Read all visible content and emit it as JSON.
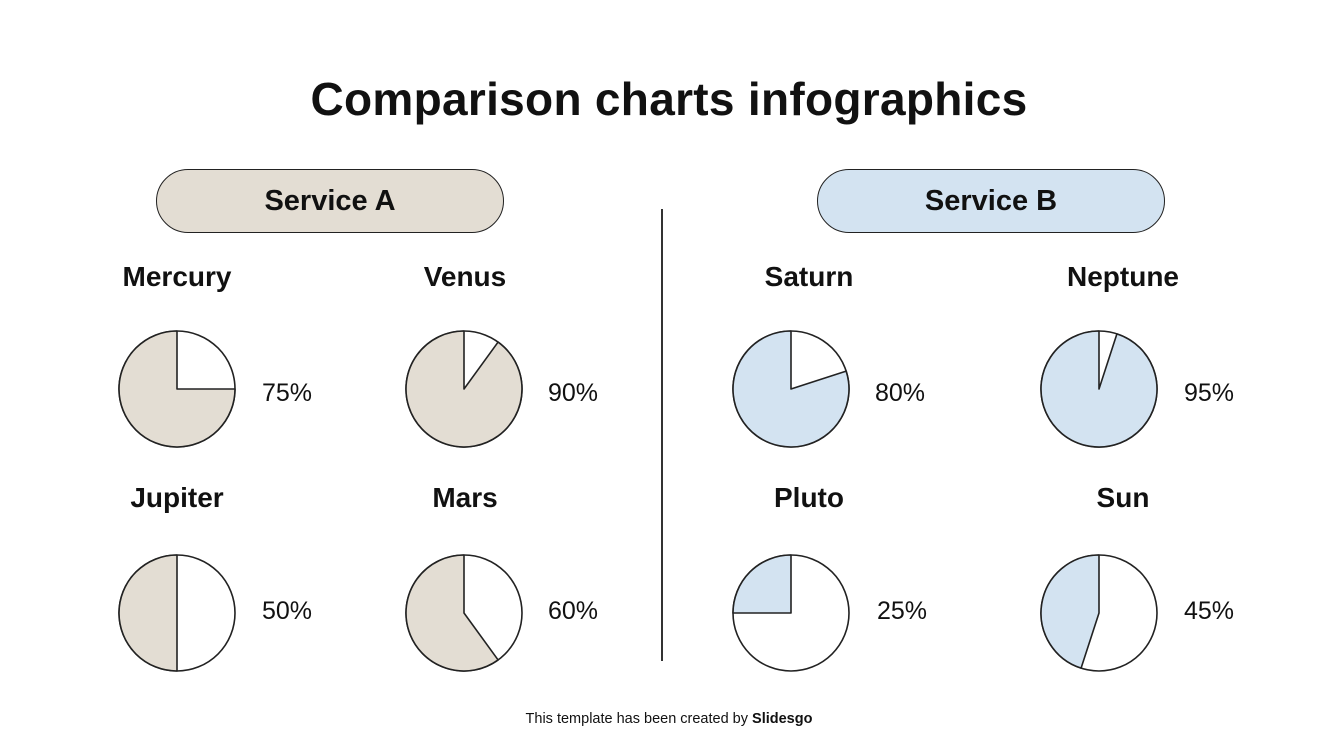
{
  "title": "Comparison charts infographics",
  "colors": {
    "service_a": "#e3ddd3",
    "service_b": "#d3e3f1",
    "outline": "#222222",
    "empty": "#ffffff"
  },
  "services": [
    {
      "label": "Service A",
      "color": "#e3ddd3",
      "items": [
        {
          "name": "Mercury",
          "value": 75,
          "label": "75%"
        },
        {
          "name": "Venus",
          "value": 90,
          "label": "90%"
        },
        {
          "name": "Jupiter",
          "value": 50,
          "label": "50%"
        },
        {
          "name": "Mars",
          "value": 60,
          "label": "60%"
        }
      ]
    },
    {
      "label": "Service B",
      "color": "#d3e3f1",
      "items": [
        {
          "name": "Saturn",
          "value": 80,
          "label": "80%"
        },
        {
          "name": "Neptune",
          "value": 95,
          "label": "95%"
        },
        {
          "name": "Pluto",
          "value": 25,
          "label": "25%"
        },
        {
          "name": "Sun",
          "value": 45,
          "label": "45%"
        }
      ]
    }
  ],
  "footer": {
    "prefix": "This template has been created by ",
    "brand": "Slidesgo"
  },
  "chart_data": [
    {
      "type": "pie",
      "title": "Mercury",
      "group": "Service A",
      "values": [
        75,
        25
      ],
      "labels": [
        "filled",
        "empty"
      ],
      "annotation": "75%"
    },
    {
      "type": "pie",
      "title": "Venus",
      "group": "Service A",
      "values": [
        90,
        10
      ],
      "labels": [
        "filled",
        "empty"
      ],
      "annotation": "90%"
    },
    {
      "type": "pie",
      "title": "Jupiter",
      "group": "Service A",
      "values": [
        50,
        50
      ],
      "labels": [
        "filled",
        "empty"
      ],
      "annotation": "50%"
    },
    {
      "type": "pie",
      "title": "Mars",
      "group": "Service A",
      "values": [
        60,
        40
      ],
      "labels": [
        "filled",
        "empty"
      ],
      "annotation": "60%"
    },
    {
      "type": "pie",
      "title": "Saturn",
      "group": "Service B",
      "values": [
        80,
        20
      ],
      "labels": [
        "filled",
        "empty"
      ],
      "annotation": "80%"
    },
    {
      "type": "pie",
      "title": "Neptune",
      "group": "Service B",
      "values": [
        95,
        5
      ],
      "labels": [
        "filled",
        "empty"
      ],
      "annotation": "95%"
    },
    {
      "type": "pie",
      "title": "Pluto",
      "group": "Service B",
      "values": [
        25,
        75
      ],
      "labels": [
        "filled",
        "empty"
      ],
      "annotation": "25%"
    },
    {
      "type": "pie",
      "title": "Sun",
      "group": "Service B",
      "values": [
        45,
        55
      ],
      "labels": [
        "filled",
        "empty"
      ],
      "annotation": "45%"
    }
  ]
}
